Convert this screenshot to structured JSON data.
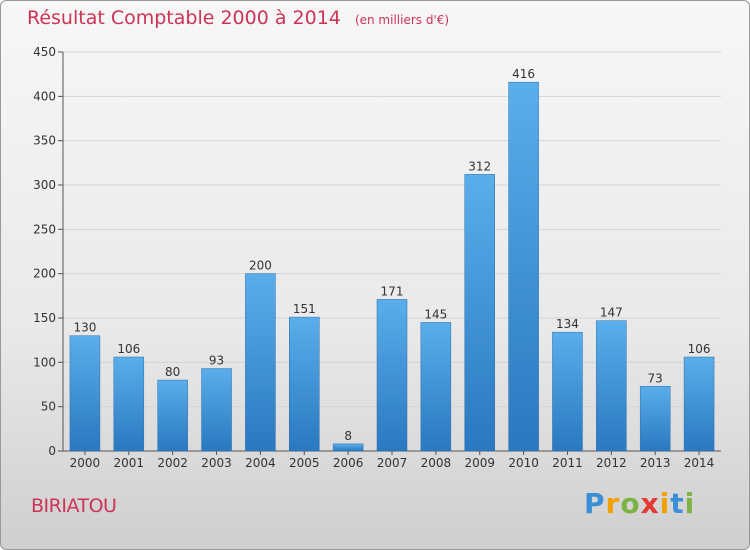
{
  "chart_data": {
    "type": "bar",
    "title": "Résultat Comptable 2000 à 2014",
    "subtitle": "(en milliers d'€)",
    "xlabel": "",
    "ylabel": "",
    "categories": [
      "2000",
      "2001",
      "2002",
      "2003",
      "2004",
      "2005",
      "2006",
      "2007",
      "2008",
      "2009",
      "2010",
      "2011",
      "2012",
      "2013",
      "2014"
    ],
    "values": [
      130,
      106,
      80,
      93,
      200,
      151,
      8,
      171,
      145,
      312,
      416,
      134,
      147,
      73,
      106
    ],
    "ylim": [
      0,
      450
    ],
    "yticks": [
      0,
      50,
      100,
      150,
      200,
      250,
      300,
      350,
      400,
      450
    ],
    "grid": true,
    "bar_color": "#3a8fd6",
    "title_color": "#cc3355"
  },
  "footer": {
    "commune": "BIRIATOU",
    "brand": "Proxiti",
    "brand_colors": [
      "#3a8fd6",
      "#f0a000",
      "#7cb342",
      "#e53935",
      "#f0a000",
      "#3a8fd6",
      "#7cb342"
    ]
  }
}
